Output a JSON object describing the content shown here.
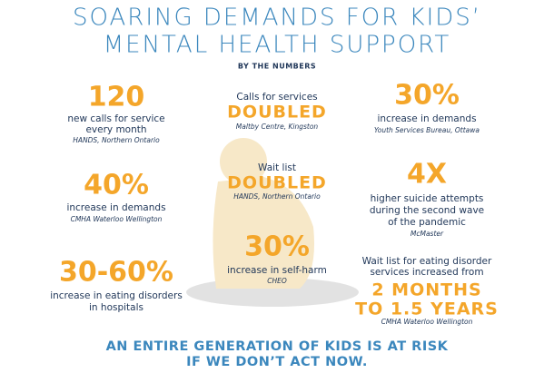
{
  "header": {
    "title_lines": [
      "SOARING DEMANDS FOR KIDS’",
      "MENTAL HEALTH SUPPORT"
    ],
    "subtitle": "BY THE NUMBERS"
  },
  "stats": [
    {
      "figure": [
        "120"
      ],
      "description": [
        "new calls for service",
        "every month"
      ],
      "source": "HANDS, Northern Ontario"
    },
    {
      "lead": [
        "Calls for services"
      ],
      "figure": [
        "DOUBLED"
      ],
      "source": "Maltby Centre, Kingston"
    },
    {
      "figure": [
        "30%"
      ],
      "description": [
        "increase in demands"
      ],
      "source": "Youth Services Bureau, Ottawa"
    },
    {
      "figure": [
        "40%"
      ],
      "description": [
        "increase in demands"
      ],
      "source": "CMHA Waterloo Wellington"
    },
    {
      "lead": [
        "Wait list"
      ],
      "figure": [
        "DOUBLED"
      ],
      "source": "HANDS, Northern Ontario"
    },
    {
      "figure": [
        "4X"
      ],
      "description": [
        "higher suicide attempts",
        "during the second wave",
        "of the pandemic"
      ],
      "source": "McMaster"
    },
    {
      "figure": [
        "30-60%"
      ],
      "description": [
        "increase in eating disorders",
        "in hospitals"
      ]
    },
    {
      "figure": [
        "30%"
      ],
      "description": [
        "increase in self-harm"
      ],
      "source": "CHEO"
    },
    {
      "lead": [
        "Wait list for eating disorder",
        "services increased from"
      ],
      "figure": [
        "2 MONTHS",
        "TO 1.5 YEARS"
      ],
      "source": "CMHA Waterloo Wellington"
    }
  ],
  "footer_lines": [
    "AN ENTIRE GENERATION OF KIDS IS AT RISK",
    "IF WE DON’T ACT NOW."
  ]
}
